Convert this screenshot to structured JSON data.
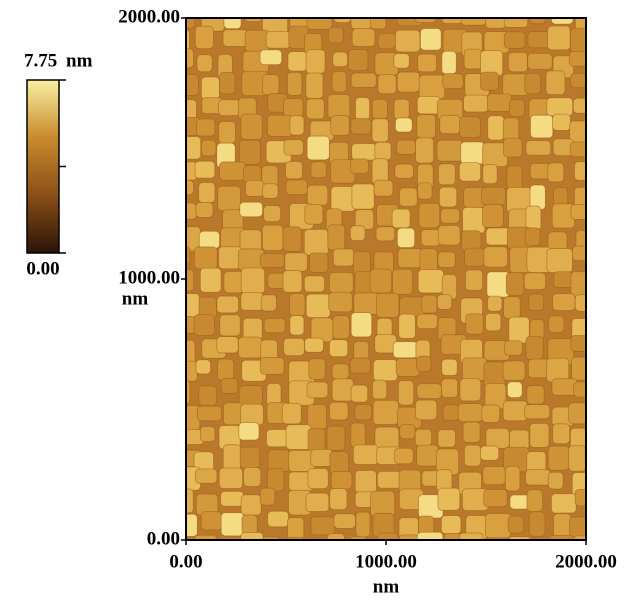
{
  "chart_data": {
    "type": "image",
    "xlim": [
      0,
      2000
    ],
    "ylim": [
      0,
      2000
    ],
    "xticks": [
      {
        "value": 0,
        "label": "0.00"
      },
      {
        "value": 1000,
        "label": "1000.00"
      },
      {
        "value": 2000,
        "label": "2000.00"
      }
    ],
    "yticks": [
      {
        "value": 0,
        "label": "0.00"
      },
      {
        "value": 1000,
        "label": "1000.00"
      },
      {
        "value": 2000,
        "label": "2000.00"
      }
    ],
    "xlabel": "nm",
    "ylabel": "nm",
    "colorbar": {
      "lim": [
        0,
        7.75
      ],
      "unit": "nm",
      "ticks": [
        {
          "value": 0,
          "label": "0.00"
        },
        {
          "value": 7.75,
          "label": "7.75"
        }
      ],
      "colors": [
        "#2a1408",
        "#8a4f16",
        "#c98a2e",
        "#f8f0a0"
      ]
    }
  }
}
